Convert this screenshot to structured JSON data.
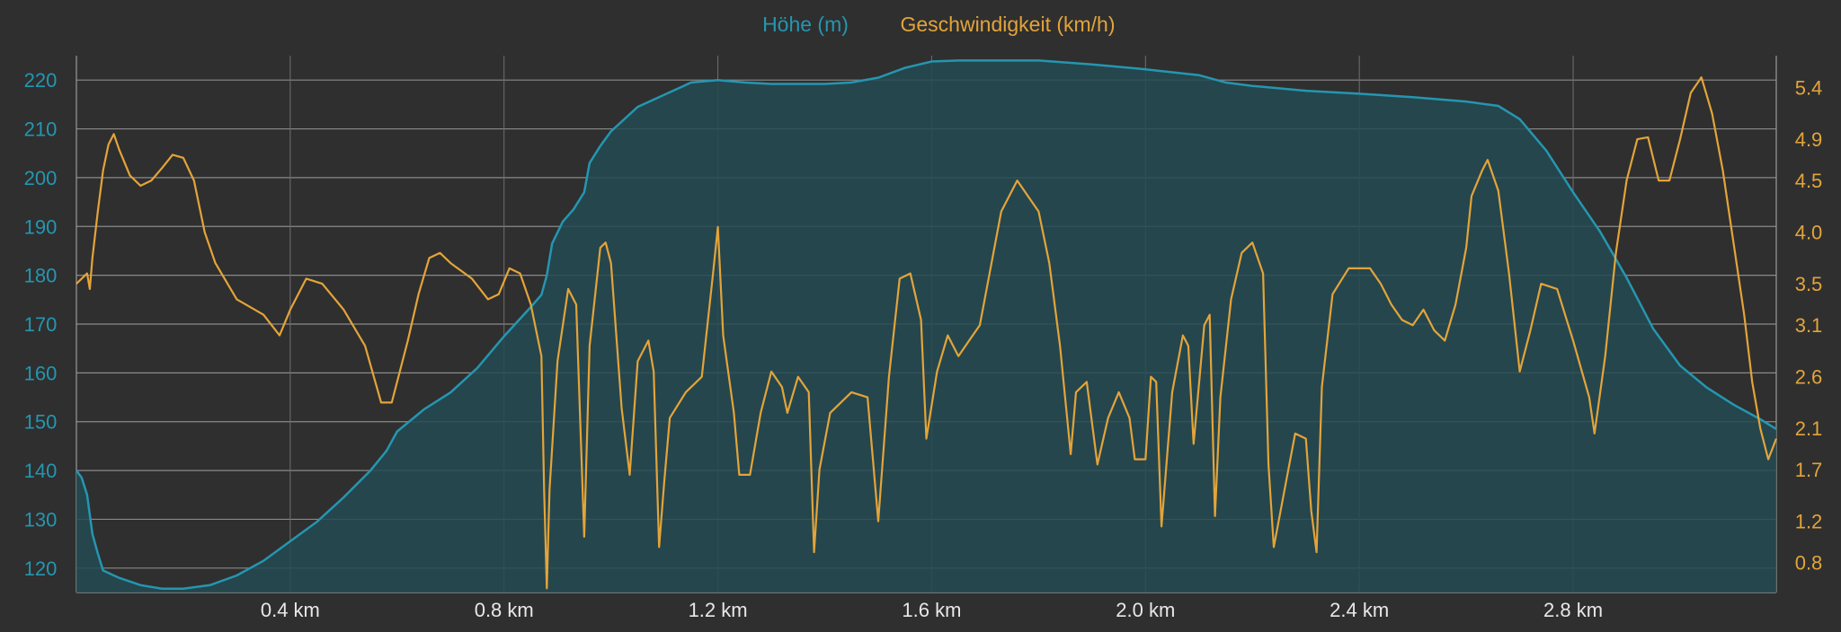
{
  "chart_data": {
    "type": "area",
    "legend": {
      "placement": "top-center",
      "items": [
        {
          "label": "Höhe (m)",
          "color": "#2596b0"
        },
        {
          "label": "Geschwindigkeit (km/h)",
          "color": "#e3a43a"
        }
      ]
    },
    "x_axis": {
      "unit": "km",
      "range": [
        0,
        3.18
      ],
      "ticks": [
        0.4,
        0.8,
        1.2,
        1.6,
        2.0,
        2.4,
        2.8
      ],
      "tick_labels": [
        "0.4 km",
        "0.8 km",
        "1.2 km",
        "1.6 km",
        "2.0 km",
        "2.4 km",
        "2.8 km"
      ],
      "grid": true
    },
    "y_left": {
      "range": [
        115,
        225
      ],
      "ticks": [
        120,
        130,
        140,
        150,
        160,
        170,
        180,
        190,
        200,
        210,
        220
      ],
      "tick_labels": [
        "120",
        "130",
        "140",
        "150",
        "160",
        "170",
        "180",
        "190",
        "200",
        "210",
        "220"
      ],
      "color": "#2596b0",
      "grid": true
    },
    "y_right": {
      "range": [
        0.51,
        5.71
      ],
      "ticks": [
        0.8,
        1.2,
        1.7,
        2.1,
        2.6,
        3.1,
        3.5,
        4.0,
        4.5,
        4.9,
        5.4
      ],
      "tick_labels": [
        "0.8",
        "1.2",
        "1.7",
        "2.1",
        "2.6",
        "3.1",
        "3.5",
        "4.0",
        "4.5",
        "4.9",
        "5.4"
      ],
      "color": "#e3a43a"
    },
    "series": [
      {
        "name": "Höhe (m)",
        "axis": "left",
        "kind": "area",
        "color": "#2596b0",
        "fill": "#234a52",
        "points": [
          [
            0.0,
            140
          ],
          [
            0.01,
            138.5
          ],
          [
            0.02,
            135
          ],
          [
            0.03,
            127
          ],
          [
            0.04,
            123
          ],
          [
            0.05,
            119.5
          ],
          [
            0.08,
            118
          ],
          [
            0.12,
            116.5
          ],
          [
            0.16,
            115.8
          ],
          [
            0.2,
            115.8
          ],
          [
            0.25,
            116.5
          ],
          [
            0.3,
            118.5
          ],
          [
            0.35,
            121.5
          ],
          [
            0.4,
            125.5
          ],
          [
            0.45,
            129.5
          ],
          [
            0.5,
            134.5
          ],
          [
            0.55,
            140
          ],
          [
            0.58,
            144
          ],
          [
            0.6,
            148
          ],
          [
            0.65,
            152.5
          ],
          [
            0.7,
            156
          ],
          [
            0.75,
            161
          ],
          [
            0.8,
            167.5
          ],
          [
            0.85,
            173.5
          ],
          [
            0.87,
            176
          ],
          [
            0.88,
            180
          ],
          [
            0.89,
            186.5
          ],
          [
            0.91,
            191
          ],
          [
            0.93,
            193.5
          ],
          [
            0.95,
            197
          ],
          [
            0.96,
            203
          ],
          [
            0.98,
            206.5
          ],
          [
            1.0,
            209.5
          ],
          [
            1.05,
            214.5
          ],
          [
            1.1,
            217
          ],
          [
            1.15,
            219.5
          ],
          [
            1.2,
            220
          ],
          [
            1.25,
            219.5
          ],
          [
            1.3,
            219.2
          ],
          [
            1.4,
            219.2
          ],
          [
            1.45,
            219.5
          ],
          [
            1.5,
            220.5
          ],
          [
            1.55,
            222.5
          ],
          [
            1.6,
            223.8
          ],
          [
            1.65,
            224
          ],
          [
            1.7,
            224
          ],
          [
            1.8,
            224
          ],
          [
            1.9,
            223.2
          ],
          [
            2.0,
            222.2
          ],
          [
            2.1,
            221
          ],
          [
            2.15,
            219.5
          ],
          [
            2.2,
            218.8
          ],
          [
            2.3,
            217.8
          ],
          [
            2.4,
            217.2
          ],
          [
            2.5,
            216.5
          ],
          [
            2.6,
            215.6
          ],
          [
            2.66,
            214.7
          ],
          [
            2.7,
            212
          ],
          [
            2.75,
            205.5
          ],
          [
            2.8,
            197
          ],
          [
            2.85,
            189
          ],
          [
            2.9,
            179.5
          ],
          [
            2.95,
            169
          ],
          [
            3.0,
            161.5
          ],
          [
            3.05,
            157
          ],
          [
            3.1,
            153.5
          ],
          [
            3.15,
            150.5
          ],
          [
            3.18,
            148.5
          ]
        ]
      },
      {
        "name": "Geschwindigkeit (km/h)",
        "axis": "right",
        "kind": "line",
        "color": "#e3a43a",
        "points": [
          [
            0.0,
            3.5
          ],
          [
            0.02,
            3.6
          ],
          [
            0.025,
            3.45
          ],
          [
            0.03,
            3.75
          ],
          [
            0.04,
            4.2
          ],
          [
            0.05,
            4.6
          ],
          [
            0.06,
            4.85
          ],
          [
            0.07,
            4.95
          ],
          [
            0.08,
            4.8
          ],
          [
            0.1,
            4.55
          ],
          [
            0.12,
            4.45
          ],
          [
            0.14,
            4.5
          ],
          [
            0.16,
            4.62
          ],
          [
            0.18,
            4.75
          ],
          [
            0.2,
            4.72
          ],
          [
            0.22,
            4.5
          ],
          [
            0.24,
            4.0
          ],
          [
            0.26,
            3.7
          ],
          [
            0.3,
            3.35
          ],
          [
            0.35,
            3.2
          ],
          [
            0.38,
            3.0
          ],
          [
            0.4,
            3.25
          ],
          [
            0.43,
            3.55
          ],
          [
            0.46,
            3.5
          ],
          [
            0.5,
            3.25
          ],
          [
            0.54,
            2.9
          ],
          [
            0.57,
            2.35
          ],
          [
            0.59,
            2.35
          ],
          [
            0.62,
            2.95
          ],
          [
            0.64,
            3.4
          ],
          [
            0.66,
            3.75
          ],
          [
            0.68,
            3.8
          ],
          [
            0.7,
            3.7
          ],
          [
            0.74,
            3.55
          ],
          [
            0.77,
            3.35
          ],
          [
            0.79,
            3.4
          ],
          [
            0.81,
            3.65
          ],
          [
            0.83,
            3.6
          ],
          [
            0.85,
            3.3
          ],
          [
            0.87,
            2.8
          ],
          [
            0.875,
            1.5
          ],
          [
            0.88,
            0.55
          ],
          [
            0.885,
            1.5
          ],
          [
            0.9,
            2.75
          ],
          [
            0.92,
            3.45
          ],
          [
            0.935,
            3.3
          ],
          [
            0.95,
            1.05
          ],
          [
            0.96,
            2.9
          ],
          [
            0.98,
            3.85
          ],
          [
            0.99,
            3.9
          ],
          [
            1.0,
            3.7
          ],
          [
            1.02,
            2.3
          ],
          [
            1.035,
            1.65
          ],
          [
            1.05,
            2.75
          ],
          [
            1.07,
            2.95
          ],
          [
            1.08,
            2.65
          ],
          [
            1.09,
            0.95
          ],
          [
            1.1,
            1.6
          ],
          [
            1.11,
            2.2
          ],
          [
            1.14,
            2.45
          ],
          [
            1.17,
            2.6
          ],
          [
            1.19,
            3.55
          ],
          [
            1.2,
            4.05
          ],
          [
            1.21,
            3.0
          ],
          [
            1.23,
            2.25
          ],
          [
            1.24,
            1.65
          ],
          [
            1.26,
            1.65
          ],
          [
            1.28,
            2.25
          ],
          [
            1.3,
            2.65
          ],
          [
            1.32,
            2.5
          ],
          [
            1.33,
            2.25
          ],
          [
            1.35,
            2.6
          ],
          [
            1.37,
            2.45
          ],
          [
            1.38,
            0.9
          ],
          [
            1.39,
            1.7
          ],
          [
            1.41,
            2.25
          ],
          [
            1.45,
            2.45
          ],
          [
            1.48,
            2.4
          ],
          [
            1.5,
            1.2
          ],
          [
            1.52,
            2.6
          ],
          [
            1.54,
            3.55
          ],
          [
            1.56,
            3.6
          ],
          [
            1.58,
            3.15
          ],
          [
            1.59,
            2.0
          ],
          [
            1.61,
            2.65
          ],
          [
            1.63,
            3.0
          ],
          [
            1.65,
            2.8
          ],
          [
            1.67,
            2.95
          ],
          [
            1.69,
            3.1
          ],
          [
            1.71,
            3.65
          ],
          [
            1.73,
            4.2
          ],
          [
            1.76,
            4.5
          ],
          [
            1.78,
            4.35
          ],
          [
            1.8,
            4.2
          ],
          [
            1.82,
            3.7
          ],
          [
            1.84,
            2.9
          ],
          [
            1.86,
            1.85
          ],
          [
            1.87,
            2.45
          ],
          [
            1.89,
            2.55
          ],
          [
            1.91,
            1.75
          ],
          [
            1.93,
            2.2
          ],
          [
            1.95,
            2.45
          ],
          [
            1.97,
            2.2
          ],
          [
            1.98,
            1.8
          ],
          [
            2.0,
            1.8
          ],
          [
            2.01,
            2.6
          ],
          [
            2.02,
            2.55
          ],
          [
            2.03,
            1.15
          ],
          [
            2.05,
            2.45
          ],
          [
            2.07,
            3.0
          ],
          [
            2.08,
            2.9
          ],
          [
            2.09,
            1.95
          ],
          [
            2.11,
            3.1
          ],
          [
            2.12,
            3.2
          ],
          [
            2.13,
            1.25
          ],
          [
            2.14,
            2.4
          ],
          [
            2.16,
            3.35
          ],
          [
            2.18,
            3.8
          ],
          [
            2.2,
            3.9
          ],
          [
            2.22,
            3.6
          ],
          [
            2.23,
            1.75
          ],
          [
            2.24,
            0.95
          ],
          [
            2.26,
            1.5
          ],
          [
            2.28,
            2.05
          ],
          [
            2.3,
            2.0
          ],
          [
            2.31,
            1.3
          ],
          [
            2.32,
            0.9
          ],
          [
            2.33,
            2.5
          ],
          [
            2.35,
            3.4
          ],
          [
            2.38,
            3.65
          ],
          [
            2.42,
            3.65
          ],
          [
            2.44,
            3.5
          ],
          [
            2.46,
            3.3
          ],
          [
            2.48,
            3.15
          ],
          [
            2.5,
            3.1
          ],
          [
            2.52,
            3.25
          ],
          [
            2.54,
            3.05
          ],
          [
            2.56,
            2.95
          ],
          [
            2.58,
            3.3
          ],
          [
            2.6,
            3.85
          ],
          [
            2.61,
            4.35
          ],
          [
            2.63,
            4.6
          ],
          [
            2.64,
            4.7
          ],
          [
            2.66,
            4.4
          ],
          [
            2.68,
            3.6
          ],
          [
            2.7,
            2.65
          ],
          [
            2.72,
            3.05
          ],
          [
            2.74,
            3.5
          ],
          [
            2.77,
            3.45
          ],
          [
            2.8,
            2.95
          ],
          [
            2.83,
            2.4
          ],
          [
            2.84,
            2.05
          ],
          [
            2.86,
            2.8
          ],
          [
            2.88,
            3.8
          ],
          [
            2.9,
            4.5
          ],
          [
            2.92,
            4.9
          ],
          [
            2.94,
            4.92
          ],
          [
            2.96,
            4.5
          ],
          [
            2.98,
            4.5
          ],
          [
            3.0,
            4.9
          ],
          [
            3.02,
            5.35
          ],
          [
            3.04,
            5.5
          ],
          [
            3.06,
            5.15
          ],
          [
            3.08,
            4.6
          ],
          [
            3.1,
            3.9
          ],
          [
            3.12,
            3.2
          ],
          [
            3.135,
            2.55
          ],
          [
            3.15,
            2.1
          ],
          [
            3.165,
            1.8
          ],
          [
            3.18,
            2.0
          ]
        ]
      }
    ]
  }
}
